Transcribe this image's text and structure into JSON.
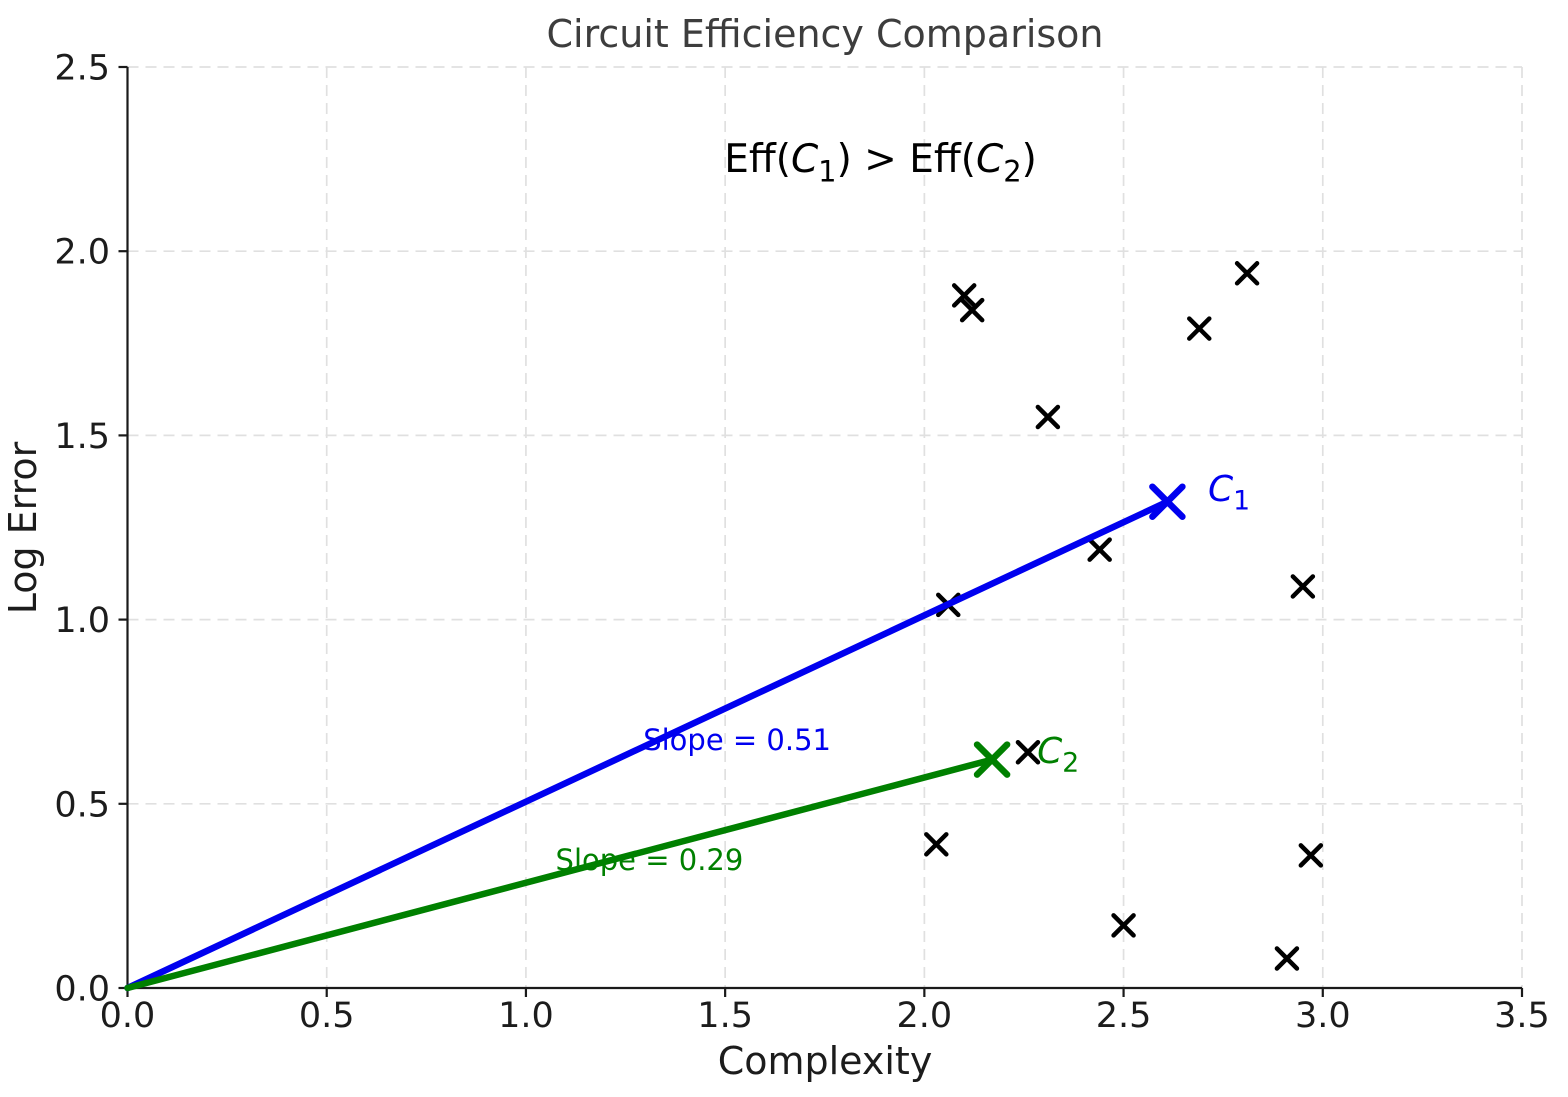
{
  "chart_data": {
    "type": "scatter",
    "title": "Circuit Efficiency Comparison",
    "xlabel": "Complexity",
    "ylabel": "Log Error",
    "xlim": [
      0.0,
      3.5
    ],
    "ylim": [
      0.0,
      2.5
    ],
    "xtick_labels": [
      "0.0",
      "0.5",
      "1.0",
      "1.5",
      "2.0",
      "2.5",
      "3.0",
      "3.5"
    ],
    "ytick_labels": [
      "0.0",
      "0.5",
      "1.0",
      "1.5",
      "2.0",
      "2.5"
    ],
    "grid": {
      "show": true,
      "style": "dashed",
      "color": "#e0e0e0"
    },
    "background": "#ffffff",
    "annotation": {
      "text": "Eff(C1) > Eff(C2)",
      "parts": [
        {
          "t": "Eff("
        },
        {
          "t": "C",
          "italic": true
        },
        {
          "t": "1",
          "sub": true
        },
        {
          "t": ") > Eff("
        },
        {
          "t": "C",
          "italic": true
        },
        {
          "t": "2",
          "sub": true
        },
        {
          "t": ")"
        }
      ],
      "color": "#000000",
      "pos": [
        1.89,
        2.215
      ]
    },
    "scatter": {
      "marker": "x",
      "color": "#000000",
      "points": [
        [
          2.1,
          1.88
        ],
        [
          2.12,
          1.84
        ],
        [
          2.81,
          1.94
        ],
        [
          2.69,
          1.79
        ],
        [
          2.31,
          1.55
        ],
        [
          2.44,
          1.19
        ],
        [
          2.06,
          1.04
        ],
        [
          2.95,
          1.09
        ],
        [
          2.26,
          0.64
        ],
        [
          2.03,
          0.39
        ],
        [
          2.97,
          0.36
        ],
        [
          2.5,
          0.17
        ],
        [
          2.91,
          0.08
        ]
      ]
    },
    "lines": [
      {
        "id": "C1",
        "color": "#0000ef",
        "start": [
          0.0,
          0.0
        ],
        "end": [
          2.61,
          1.32
        ],
        "slope": 0.51,
        "slope_label": "Slope = 0.51",
        "slope_label_pos": [
          1.53,
          0.646
        ],
        "label_text": "C1",
        "label_parts": [
          {
            "t": "C",
            "italic": true
          },
          {
            "t": "1",
            "sub": true
          }
        ],
        "label_pos": [
          2.712,
          1.322
        ]
      },
      {
        "id": "C2",
        "color": "#008000",
        "start": [
          0.0,
          0.0
        ],
        "end": [
          2.17,
          0.62
        ],
        "slope": 0.29,
        "slope_label": "Slope = 0.29",
        "slope_label_pos": [
          1.31,
          0.32
        ],
        "label_text": "C2",
        "label_parts": [
          {
            "t": "C",
            "italic": true
          },
          {
            "t": "2",
            "sub": true
          }
        ],
        "label_pos": [
          2.283,
          0.611
        ]
      }
    ]
  }
}
